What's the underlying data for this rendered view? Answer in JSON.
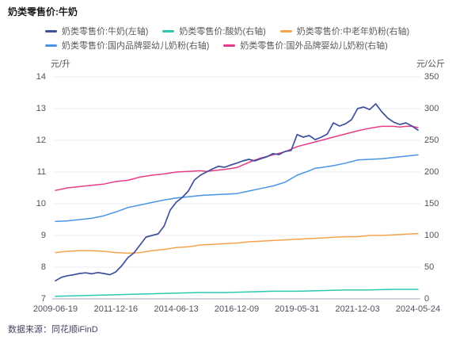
{
  "footer": {
    "source": "数据来源：同花顺iFinD"
  },
  "chart_data": {
    "type": "line",
    "title": "奶类零售价:牛奶",
    "legend_position": "top",
    "grid": true,
    "x_axis": {
      "months_total": 180,
      "ticks": [
        {
          "label": "2009-06-19",
          "m": 0
        },
        {
          "label": "2011-12-16",
          "m": 30
        },
        {
          "label": "2014-06-13",
          "m": 60
        },
        {
          "label": "2016-12-09",
          "m": 90
        },
        {
          "label": "2019-05-31",
          "m": 120
        },
        {
          "label": "2021-12-03",
          "m": 150
        },
        {
          "label": "2024-05-24",
          "m": 180
        }
      ]
    },
    "left_axis": {
      "unit": "元/升",
      "min": 7,
      "max": 14,
      "ticks": [
        14,
        13,
        12,
        11,
        10,
        9,
        8,
        7
      ]
    },
    "right_axis": {
      "unit": "元/公斤",
      "min": 0,
      "max": 350,
      "ticks": [
        350,
        300,
        250,
        200,
        150,
        100,
        50,
        0
      ]
    },
    "series": [
      {
        "name": "奶类零售价:牛奶(左轴)",
        "axis": "left",
        "color": "#3E4F9E",
        "width": 1.7,
        "points": [
          [
            0,
            7.57
          ],
          [
            3,
            7.68
          ],
          [
            6,
            7.73
          ],
          [
            9,
            7.76
          ],
          [
            12,
            7.8
          ],
          [
            15,
            7.82
          ],
          [
            18,
            7.79
          ],
          [
            21,
            7.83
          ],
          [
            24,
            7.8
          ],
          [
            27,
            7.76
          ],
          [
            30,
            7.85
          ],
          [
            33,
            8.05
          ],
          [
            36,
            8.3
          ],
          [
            39,
            8.45
          ],
          [
            42,
            8.7
          ],
          [
            45,
            8.95
          ],
          [
            48,
            9.0
          ],
          [
            51,
            9.05
          ],
          [
            54,
            9.3
          ],
          [
            57,
            9.8
          ],
          [
            60,
            10.05
          ],
          [
            63,
            10.2
          ],
          [
            66,
            10.4
          ],
          [
            69,
            10.75
          ],
          [
            72,
            10.9
          ],
          [
            75,
            11.0
          ],
          [
            78,
            11.1
          ],
          [
            81,
            11.18
          ],
          [
            84,
            11.15
          ],
          [
            87,
            11.22
          ],
          [
            90,
            11.28
          ],
          [
            93,
            11.35
          ],
          [
            96,
            11.4
          ],
          [
            99,
            11.35
          ],
          [
            102,
            11.42
          ],
          [
            105,
            11.48
          ],
          [
            108,
            11.58
          ],
          [
            111,
            11.55
          ],
          [
            114,
            11.65
          ],
          [
            117,
            11.68
          ],
          [
            120,
            12.18
          ],
          [
            123,
            12.1
          ],
          [
            126,
            12.15
          ],
          [
            129,
            12.02
          ],
          [
            132,
            12.1
          ],
          [
            135,
            12.2
          ],
          [
            138,
            12.55
          ],
          [
            141,
            12.45
          ],
          [
            144,
            12.52
          ],
          [
            147,
            12.65
          ],
          [
            150,
            13.0
          ],
          [
            153,
            13.05
          ],
          [
            156,
            12.97
          ],
          [
            159,
            13.15
          ],
          [
            162,
            12.9
          ],
          [
            165,
            12.7
          ],
          [
            168,
            12.57
          ],
          [
            171,
            12.5
          ],
          [
            174,
            12.55
          ],
          [
            177,
            12.45
          ],
          [
            180,
            12.32
          ]
        ]
      },
      {
        "name": "奶类零售价:酸奶(右轴)",
        "axis": "right",
        "color": "#2EC7B0",
        "width": 1.5,
        "points": [
          [
            0,
            4
          ],
          [
            12,
            5
          ],
          [
            24,
            6
          ],
          [
            36,
            7
          ],
          [
            48,
            8
          ],
          [
            60,
            9
          ],
          [
            72,
            10
          ],
          [
            84,
            10
          ],
          [
            96,
            11
          ],
          [
            108,
            12
          ],
          [
            120,
            12
          ],
          [
            132,
            13
          ],
          [
            144,
            14
          ],
          [
            156,
            14
          ],
          [
            168,
            15
          ],
          [
            180,
            15
          ]
        ]
      },
      {
        "name": "奶类零售价:中老年奶粉(右轴)",
        "axis": "right",
        "color": "#F6A44C",
        "width": 1.5,
        "points": [
          [
            0,
            73
          ],
          [
            6,
            75
          ],
          [
            12,
            76
          ],
          [
            18,
            76
          ],
          [
            24,
            75
          ],
          [
            30,
            73
          ],
          [
            36,
            72
          ],
          [
            42,
            73
          ],
          [
            48,
            76
          ],
          [
            54,
            78
          ],
          [
            60,
            81
          ],
          [
            66,
            82
          ],
          [
            72,
            85
          ],
          [
            78,
            86
          ],
          [
            84,
            87
          ],
          [
            90,
            88
          ],
          [
            96,
            90
          ],
          [
            102,
            91
          ],
          [
            108,
            92
          ],
          [
            114,
            93
          ],
          [
            120,
            94
          ],
          [
            126,
            95
          ],
          [
            132,
            96
          ],
          [
            138,
            97
          ],
          [
            144,
            98
          ],
          [
            150,
            98
          ],
          [
            156,
            100
          ],
          [
            162,
            100
          ],
          [
            168,
            101
          ],
          [
            174,
            102
          ],
          [
            180,
            103
          ]
        ]
      },
      {
        "name": "奶类零售价:国内品牌婴幼儿奶粉(右轴)",
        "axis": "right",
        "color": "#4A94E4",
        "width": 1.5,
        "points": [
          [
            0,
            122
          ],
          [
            6,
            123
          ],
          [
            12,
            125
          ],
          [
            18,
            127
          ],
          [
            24,
            131
          ],
          [
            30,
            137
          ],
          [
            36,
            144
          ],
          [
            42,
            148
          ],
          [
            48,
            152
          ],
          [
            54,
            156
          ],
          [
            60,
            159
          ],
          [
            66,
            161
          ],
          [
            72,
            163
          ],
          [
            78,
            164
          ],
          [
            84,
            165
          ],
          [
            90,
            166
          ],
          [
            96,
            170
          ],
          [
            102,
            174
          ],
          [
            108,
            178
          ],
          [
            114,
            184
          ],
          [
            120,
            195
          ],
          [
            126,
            202
          ],
          [
            129,
            206
          ],
          [
            132,
            207
          ],
          [
            138,
            210
          ],
          [
            144,
            214
          ],
          [
            150,
            219
          ],
          [
            156,
            220
          ],
          [
            162,
            221
          ],
          [
            168,
            223
          ],
          [
            174,
            225
          ],
          [
            180,
            227
          ]
        ]
      },
      {
        "name": "奶类零售价:国外品牌婴幼儿奶粉(右轴)",
        "axis": "right",
        "color": "#E53E86",
        "width": 1.5,
        "points": [
          [
            0,
            171
          ],
          [
            6,
            175
          ],
          [
            12,
            177
          ],
          [
            18,
            179
          ],
          [
            24,
            181
          ],
          [
            30,
            185
          ],
          [
            36,
            187
          ],
          [
            42,
            192
          ],
          [
            48,
            195
          ],
          [
            54,
            197
          ],
          [
            60,
            200
          ],
          [
            66,
            201
          ],
          [
            72,
            202
          ],
          [
            75,
            201
          ],
          [
            78,
            202
          ],
          [
            84,
            204
          ],
          [
            90,
            207
          ],
          [
            93,
            211
          ],
          [
            96,
            215
          ],
          [
            99,
            219
          ],
          [
            102,
            222
          ],
          [
            108,
            227
          ],
          [
            114,
            232
          ],
          [
            120,
            240
          ],
          [
            126,
            245
          ],
          [
            132,
            250
          ],
          [
            138,
            255
          ],
          [
            144,
            260
          ],
          [
            150,
            265
          ],
          [
            156,
            269
          ],
          [
            162,
            272
          ],
          [
            168,
            272
          ],
          [
            171,
            271
          ],
          [
            174,
            272
          ],
          [
            177,
            272
          ],
          [
            180,
            270
          ]
        ]
      }
    ]
  }
}
